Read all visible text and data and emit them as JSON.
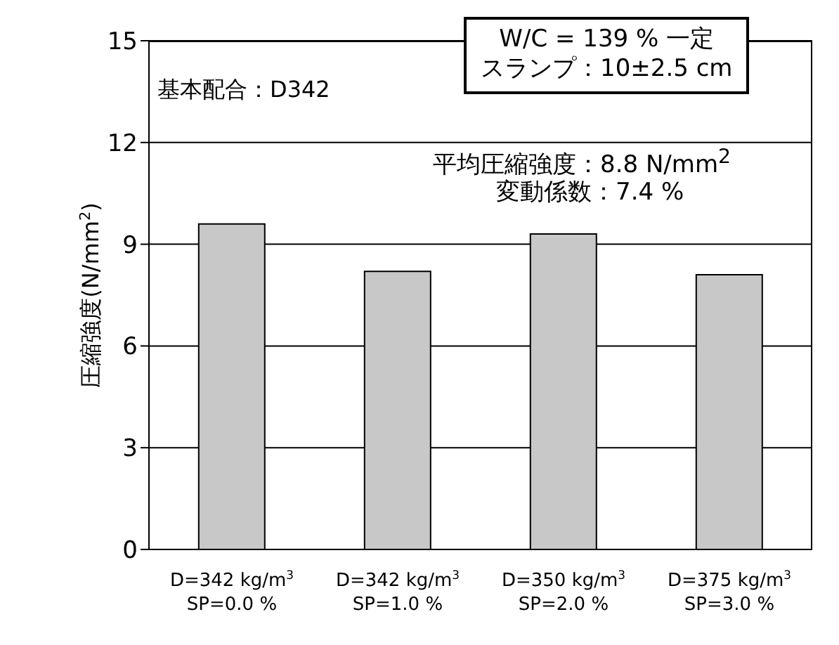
{
  "chart_data": {
    "type": "bar",
    "ylabel": "圧縮強度(N/mm$^{2}$)",
    "categories": [
      "D=342 kg/m$^{3}$\nSP=0.0 %",
      "D=342 kg/m$^{3}$\nSP=1.0 %",
      "D=350 kg/m$^{3}$\nSP=2.0 %",
      "D=375 kg/m$^{3}$\nSP=3.0 %"
    ],
    "values": [
      9.6,
      8.2,
      9.3,
      8.1
    ],
    "color": "#c8c8c8",
    "ylim": [
      0,
      15
    ],
    "yticks": [
      0,
      3,
      6,
      9,
      12,
      15
    ],
    "grid": "y",
    "annotations": [
      "基本配合：D342",
      "W/C = 139 % 一定",
      "スランプ：10±2.5 cm",
      "平均圧縮強度：8.8 N/mm$^{2}$",
      "変動係数：7.4 %"
    ]
  }
}
